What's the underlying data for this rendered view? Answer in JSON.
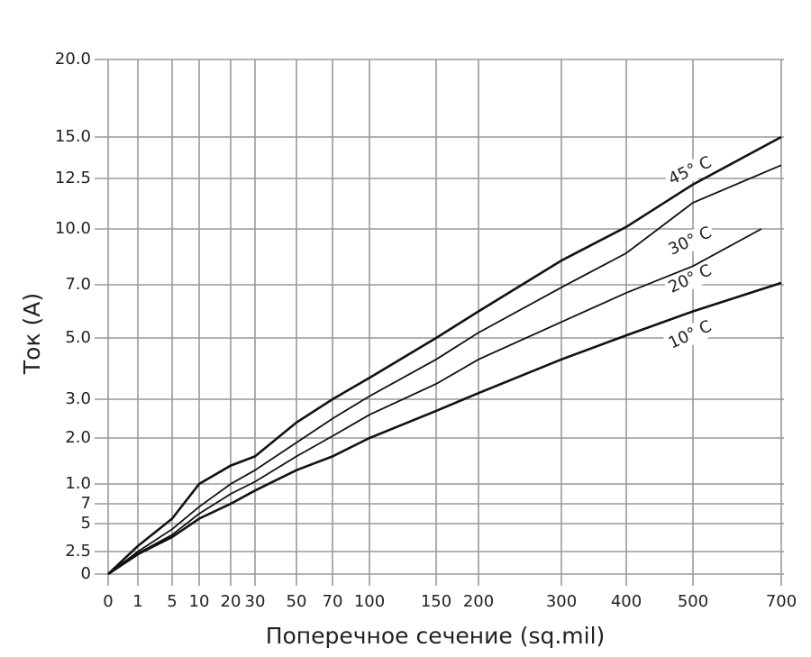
{
  "chart_data": {
    "type": "line",
    "x_label": "Поперечное сечение (sq.mil)",
    "y_label": "Ток (А)",
    "xticks": [
      0,
      1,
      5,
      10,
      20,
      30,
      50,
      70,
      100,
      150,
      200,
      300,
      400,
      500,
      700
    ],
    "yticks": [
      0,
      {
        "value": 0.25,
        "label": "2.5"
      },
      {
        "value": 0.5,
        "label": "5"
      },
      {
        "value": 0.7,
        "label": "7"
      },
      {
        "value": 1,
        "label": "1.0"
      },
      {
        "value": 2,
        "label": "2.0"
      },
      {
        "value": 3,
        "label": "3.0"
      },
      {
        "value": 5,
        "label": "5.0"
      },
      {
        "value": 7,
        "label": "7.0"
      },
      {
        "value": 10,
        "label": "10.0"
      },
      12.5,
      {
        "value": 15,
        "label": "15.0"
      },
      {
        "value": 20,
        "label": "20.0"
      }
    ],
    "xlim": [
      0,
      700
    ],
    "ylim": [
      0,
      20
    ],
    "grid": true,
    "series": [
      {
        "name": "45° C",
        "color": "#111111",
        "x": [
          0,
          1,
          5,
          10,
          20,
          30,
          50,
          70,
          100,
          150,
          200,
          300,
          400,
          500,
          700
        ],
        "values": [
          0,
          0.3,
          0.55,
          1.0,
          1.4,
          1.6,
          2.4,
          3.0,
          3.7,
          5.0,
          6.0,
          8.3,
          10.1,
          12.2,
          15.0
        ]
      },
      {
        "name": "30° C",
        "color": "#111111",
        "x": [
          0,
          1,
          5,
          10,
          20,
          30,
          50,
          70,
          100,
          150,
          200,
          300,
          400,
          500,
          700
        ],
        "values": [
          0,
          0.25,
          0.45,
          0.67,
          1.0,
          1.3,
          1.9,
          2.5,
          3.1,
          4.3,
          5.2,
          6.9,
          8.7,
          11.3,
          13.3
        ]
      },
      {
        "name": "20° C",
        "color": "#111111",
        "x": [
          0,
          1,
          5,
          10,
          20,
          30,
          50,
          70,
          100,
          150,
          200,
          300,
          400,
          500,
          655
        ],
        "values": [
          0,
          0.23,
          0.4,
          0.6,
          0.85,
          1.05,
          1.6,
          2.05,
          2.6,
          3.5,
          4.3,
          5.6,
          6.7,
          8.0,
          10.0
        ]
      },
      {
        "name": "10° C",
        "color": "#111111",
        "x": [
          0,
          1,
          5,
          10,
          20,
          30,
          50,
          70,
          100,
          150,
          200,
          300,
          400,
          500,
          700
        ],
        "values": [
          0,
          0.22,
          0.38,
          0.55,
          0.7,
          0.9,
          1.3,
          1.6,
          2.0,
          2.7,
          3.2,
          4.3,
          5.1,
          6.0,
          7.1
        ]
      }
    ]
  }
}
